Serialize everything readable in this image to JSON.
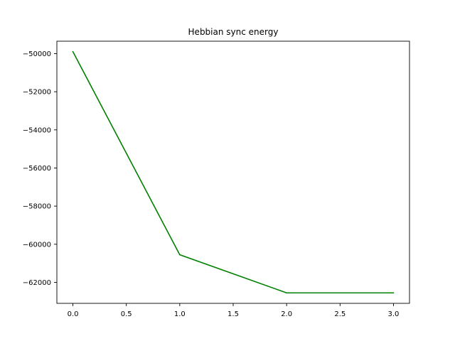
{
  "chart_data": {
    "type": "line",
    "title": "Hebbian sync energy",
    "xlabel": "",
    "ylabel": "",
    "x": [
      0,
      1,
      2,
      3
    ],
    "series": [
      {
        "values": [
          -49900,
          -60550,
          -62550,
          -62550
        ],
        "color": "#008000"
      }
    ],
    "xlim": [
      -0.15,
      3.15
    ],
    "ylim": [
      -63100,
      -49350
    ],
    "xticks": [
      0.0,
      0.5,
      1.0,
      1.5,
      2.0,
      2.5,
      3.0
    ],
    "xtick_labels": [
      "0.0",
      "0.5",
      "1.0",
      "1.5",
      "2.0",
      "2.5",
      "3.0"
    ],
    "yticks": [
      -50000,
      -52000,
      -54000,
      -56000,
      -58000,
      -60000,
      -62000
    ],
    "ytick_labels": [
      "−50000",
      "−52000",
      "−54000",
      "−56000",
      "−58000",
      "−60000",
      "−62000"
    ],
    "grid": false,
    "legend": "none"
  }
}
